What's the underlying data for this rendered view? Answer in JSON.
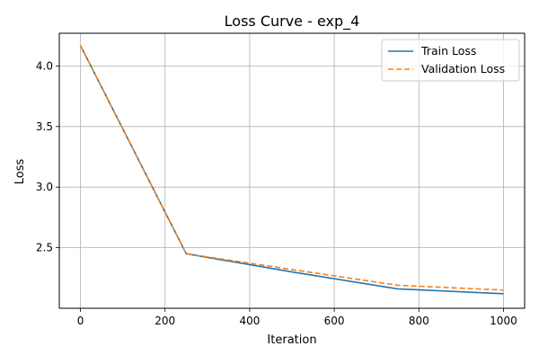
{
  "chart_data": {
    "type": "line",
    "title": "Loss Curve - exp_4",
    "xlabel": "Iteration",
    "ylabel": "Loss",
    "xlim": [
      -50,
      1050
    ],
    "ylim": [
      2.0,
      4.27
    ],
    "xticks": [
      0,
      200,
      400,
      600,
      800,
      1000
    ],
    "yticks": [
      2.5,
      3.0,
      3.5,
      4.0
    ],
    "xtick_labels": [
      "0",
      "200",
      "400",
      "600",
      "800",
      "1000"
    ],
    "ytick_labels": [
      "2.5",
      "3.0",
      "3.5",
      "4.0"
    ],
    "grid": true,
    "legend_position": "top-right",
    "series": [
      {
        "name": "Train Loss",
        "color": "#1f77b4",
        "style": "solid",
        "x": [
          0,
          250,
          500,
          750,
          1000
        ],
        "y": [
          4.17,
          2.45,
          2.3,
          2.16,
          2.12
        ]
      },
      {
        "name": "Validation Loss",
        "color": "#ff7f0e",
        "style": "dashed",
        "x": [
          0,
          250,
          500,
          750,
          1000
        ],
        "y": [
          4.17,
          2.45,
          2.32,
          2.19,
          2.15
        ]
      }
    ]
  }
}
